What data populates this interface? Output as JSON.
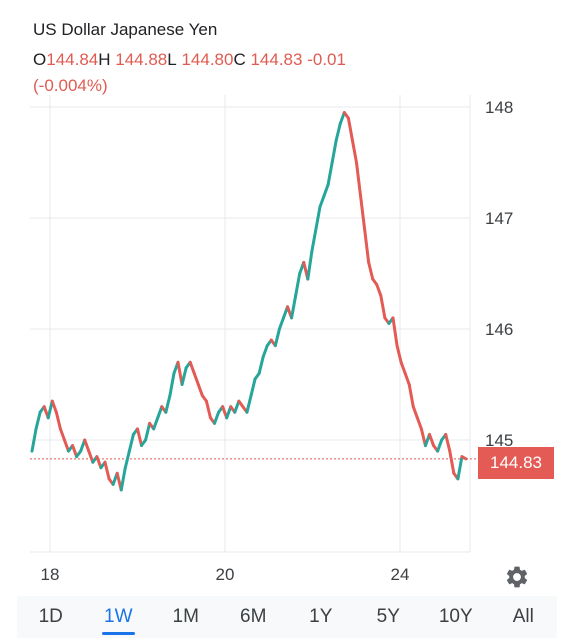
{
  "header": {
    "title": "US Dollar Japanese Yen",
    "open_label": "O",
    "open": "144.84",
    "high_label": "H",
    "high": "144.88",
    "low_label": "L",
    "low": "144.80",
    "close_label": "C",
    "close": "144.83",
    "change": "-0.01",
    "change_pct": "(-0.004%)"
  },
  "price_tag": "144.83",
  "colors": {
    "up": "#26a69a",
    "down": "#e45a54",
    "grid": "#e6e9ec",
    "accent": "#1a73e8"
  },
  "icons": {
    "settings": "gear-icon"
  },
  "tabs": [
    {
      "label": "1D",
      "active": false
    },
    {
      "label": "1W",
      "active": true
    },
    {
      "label": "1M",
      "active": false
    },
    {
      "label": "6M",
      "active": false
    },
    {
      "label": "1Y",
      "active": false
    },
    {
      "label": "5Y",
      "active": false
    },
    {
      "label": "10Y",
      "active": false
    },
    {
      "label": "All",
      "active": false
    }
  ],
  "chart_data": {
    "type": "line",
    "title": "US Dollar Japanese Yen",
    "xlabel": "",
    "ylabel": "",
    "x_ticks": [
      "18",
      "20",
      "24"
    ],
    "y_ticks": [
      145,
      146,
      147,
      148
    ],
    "ylim": [
      144.0,
      148.1
    ],
    "last_price": 144.83,
    "grid": true,
    "series": [
      {
        "values": [
          144.9,
          145.1,
          145.25,
          145.3,
          145.2,
          145.35,
          145.25,
          145.1,
          145.0,
          144.9,
          144.95,
          144.85,
          144.9,
          145.0,
          144.9,
          144.8,
          144.85,
          144.75,
          144.8,
          144.65,
          144.6,
          144.7,
          144.55,
          144.75,
          144.9,
          145.05,
          145.1,
          144.95,
          145.0,
          145.15,
          145.1,
          145.2,
          145.3,
          145.25,
          145.4,
          145.6,
          145.7,
          145.5,
          145.65,
          145.7,
          145.6,
          145.5,
          145.4,
          145.35,
          145.2,
          145.15,
          145.25,
          145.3,
          145.2,
          145.3,
          145.25,
          145.35,
          145.3,
          145.25,
          145.4,
          145.55,
          145.6,
          145.75,
          145.85,
          145.9,
          145.85,
          146.0,
          146.1,
          146.2,
          146.1,
          146.3,
          146.5,
          146.6,
          146.45,
          146.7,
          146.9,
          147.1,
          147.2,
          147.3,
          147.5,
          147.7,
          147.85,
          147.95,
          147.9,
          147.7,
          147.5,
          147.2,
          146.9,
          146.6,
          146.45,
          146.4,
          146.3,
          146.1,
          146.05,
          146.1,
          145.85,
          145.7,
          145.6,
          145.5,
          145.3,
          145.2,
          145.1,
          144.95,
          145.05,
          144.95,
          144.9,
          145.0,
          145.05,
          144.9,
          144.7,
          144.65,
          144.85,
          144.83
        ]
      }
    ]
  }
}
